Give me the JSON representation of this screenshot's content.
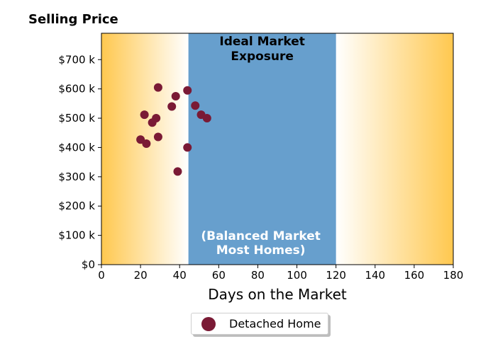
{
  "chart_data": {
    "type": "scatter",
    "ylabel": "Selling Price",
    "xlabel": "Days on the Market",
    "xlim": [
      0,
      180
    ],
    "ylim": [
      0,
      790000
    ],
    "x_ticks": [
      0,
      20,
      40,
      60,
      80,
      100,
      120,
      140,
      160,
      180
    ],
    "x_tick_labels": [
      "0",
      "20",
      "40",
      "60",
      "80",
      "100",
      "120",
      "140",
      "160",
      "180"
    ],
    "y_ticks": [
      0,
      100000,
      200000,
      300000,
      400000,
      500000,
      600000,
      700000
    ],
    "y_tick_labels": [
      "$0",
      "$100 k",
      "$200 k",
      "$300 k",
      "$400 k",
      "$500 k",
      "$600 k",
      "$700 k"
    ],
    "grid": false,
    "legend": {
      "position": "bottom-center",
      "entries": [
        "Detached Home"
      ]
    },
    "bands": [
      {
        "x_start": 44.5,
        "x_end": 120,
        "color": "#679fcd",
        "label_top_line1": "Ideal Market",
        "label_top_line2": "Exposure",
        "label_bottom_line1": "(Balanced Market",
        "label_bottom_line2": "Most Homes)"
      }
    ],
    "background_gradient": {
      "edge_color": "#ffc84f",
      "center_color": "#ffffff"
    },
    "series": [
      {
        "name": "Detached Home",
        "color": "#7a1a35",
        "points": [
          {
            "x": 29,
            "y": 605000
          },
          {
            "x": 44,
            "y": 595000
          },
          {
            "x": 38,
            "y": 575000
          },
          {
            "x": 48,
            "y": 543000
          },
          {
            "x": 36,
            "y": 540000
          },
          {
            "x": 22,
            "y": 512000
          },
          {
            "x": 51,
            "y": 512000
          },
          {
            "x": 28,
            "y": 500000
          },
          {
            "x": 54,
            "y": 500000
          },
          {
            "x": 26,
            "y": 485000
          },
          {
            "x": 29,
            "y": 436000
          },
          {
            "x": 20,
            "y": 427000
          },
          {
            "x": 23,
            "y": 413000
          },
          {
            "x": 44,
            "y": 400000
          },
          {
            "x": 39,
            "y": 318000
          }
        ]
      }
    ]
  }
}
